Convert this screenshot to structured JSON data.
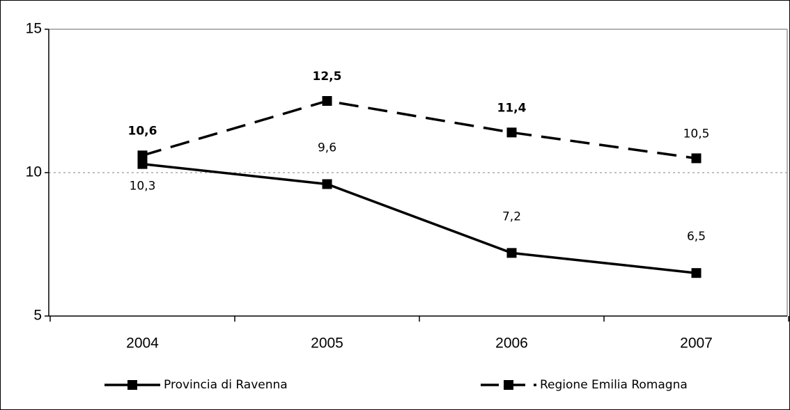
{
  "chart_data": {
    "type": "line",
    "categories": [
      "2004",
      "2005",
      "2006",
      "2007"
    ],
    "series": [
      {
        "name": "Provincia di Ravenna",
        "color": "#000000",
        "line_style": "solid",
        "values": [
          10.3,
          9.6,
          7.2,
          6.5
        ],
        "value_labels": [
          "10,3",
          "9,6",
          "7,2",
          "6,5"
        ],
        "label_bold": [
          false,
          false,
          false,
          false
        ]
      },
      {
        "name": "Regione Emilia Romagna",
        "color": "#000000",
        "line_style": "dashed",
        "values": [
          10.6,
          12.5,
          11.4,
          10.5
        ],
        "value_labels": [
          "10,6",
          "12,5",
          "11,4",
          "10,5"
        ],
        "label_bold": [
          true,
          true,
          true,
          false
        ]
      }
    ],
    "ylim": [
      5,
      15
    ],
    "yticks": [
      5,
      10,
      15
    ],
    "grid": true,
    "legend": "bottom"
  }
}
